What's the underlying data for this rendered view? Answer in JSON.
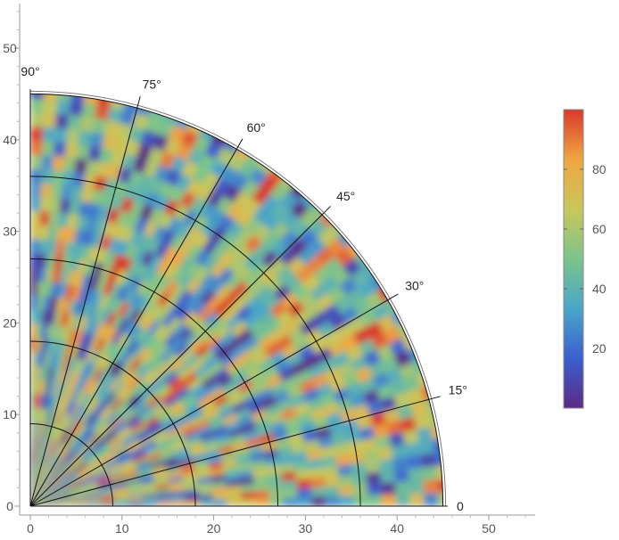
{
  "chart_data": {
    "type": "heatmap",
    "projection": "polar-quadrant",
    "title": "",
    "xlabel": "",
    "ylabel": "",
    "xlim": [
      0,
      55
    ],
    "ylim": [
      0,
      55
    ],
    "x_ticks": [
      "0",
      "10",
      "20",
      "30",
      "40",
      "50"
    ],
    "y_ticks": [
      "0",
      "10",
      "20",
      "30",
      "40",
      "50"
    ],
    "radius_max": 45,
    "radial_gridlines": [
      9,
      18,
      27,
      36,
      45
    ],
    "angle_gridlines_deg": [
      0,
      15,
      30,
      45,
      60,
      75,
      90
    ],
    "angle_labels": [
      "0",
      "15°",
      "30°",
      "45°",
      "60°",
      "75°",
      "90°"
    ],
    "colorbar": {
      "range": [
        0,
        100
      ],
      "ticks": [
        "20",
        "40",
        "60",
        "80"
      ],
      "palette": [
        "#5b2a86",
        "#3b5fcf",
        "#4aa6c9",
        "#7cc48b",
        "#c9c75a",
        "#f0a542",
        "#d93a2b"
      ]
    },
    "value_range_observed": [
      0,
      100
    ]
  }
}
